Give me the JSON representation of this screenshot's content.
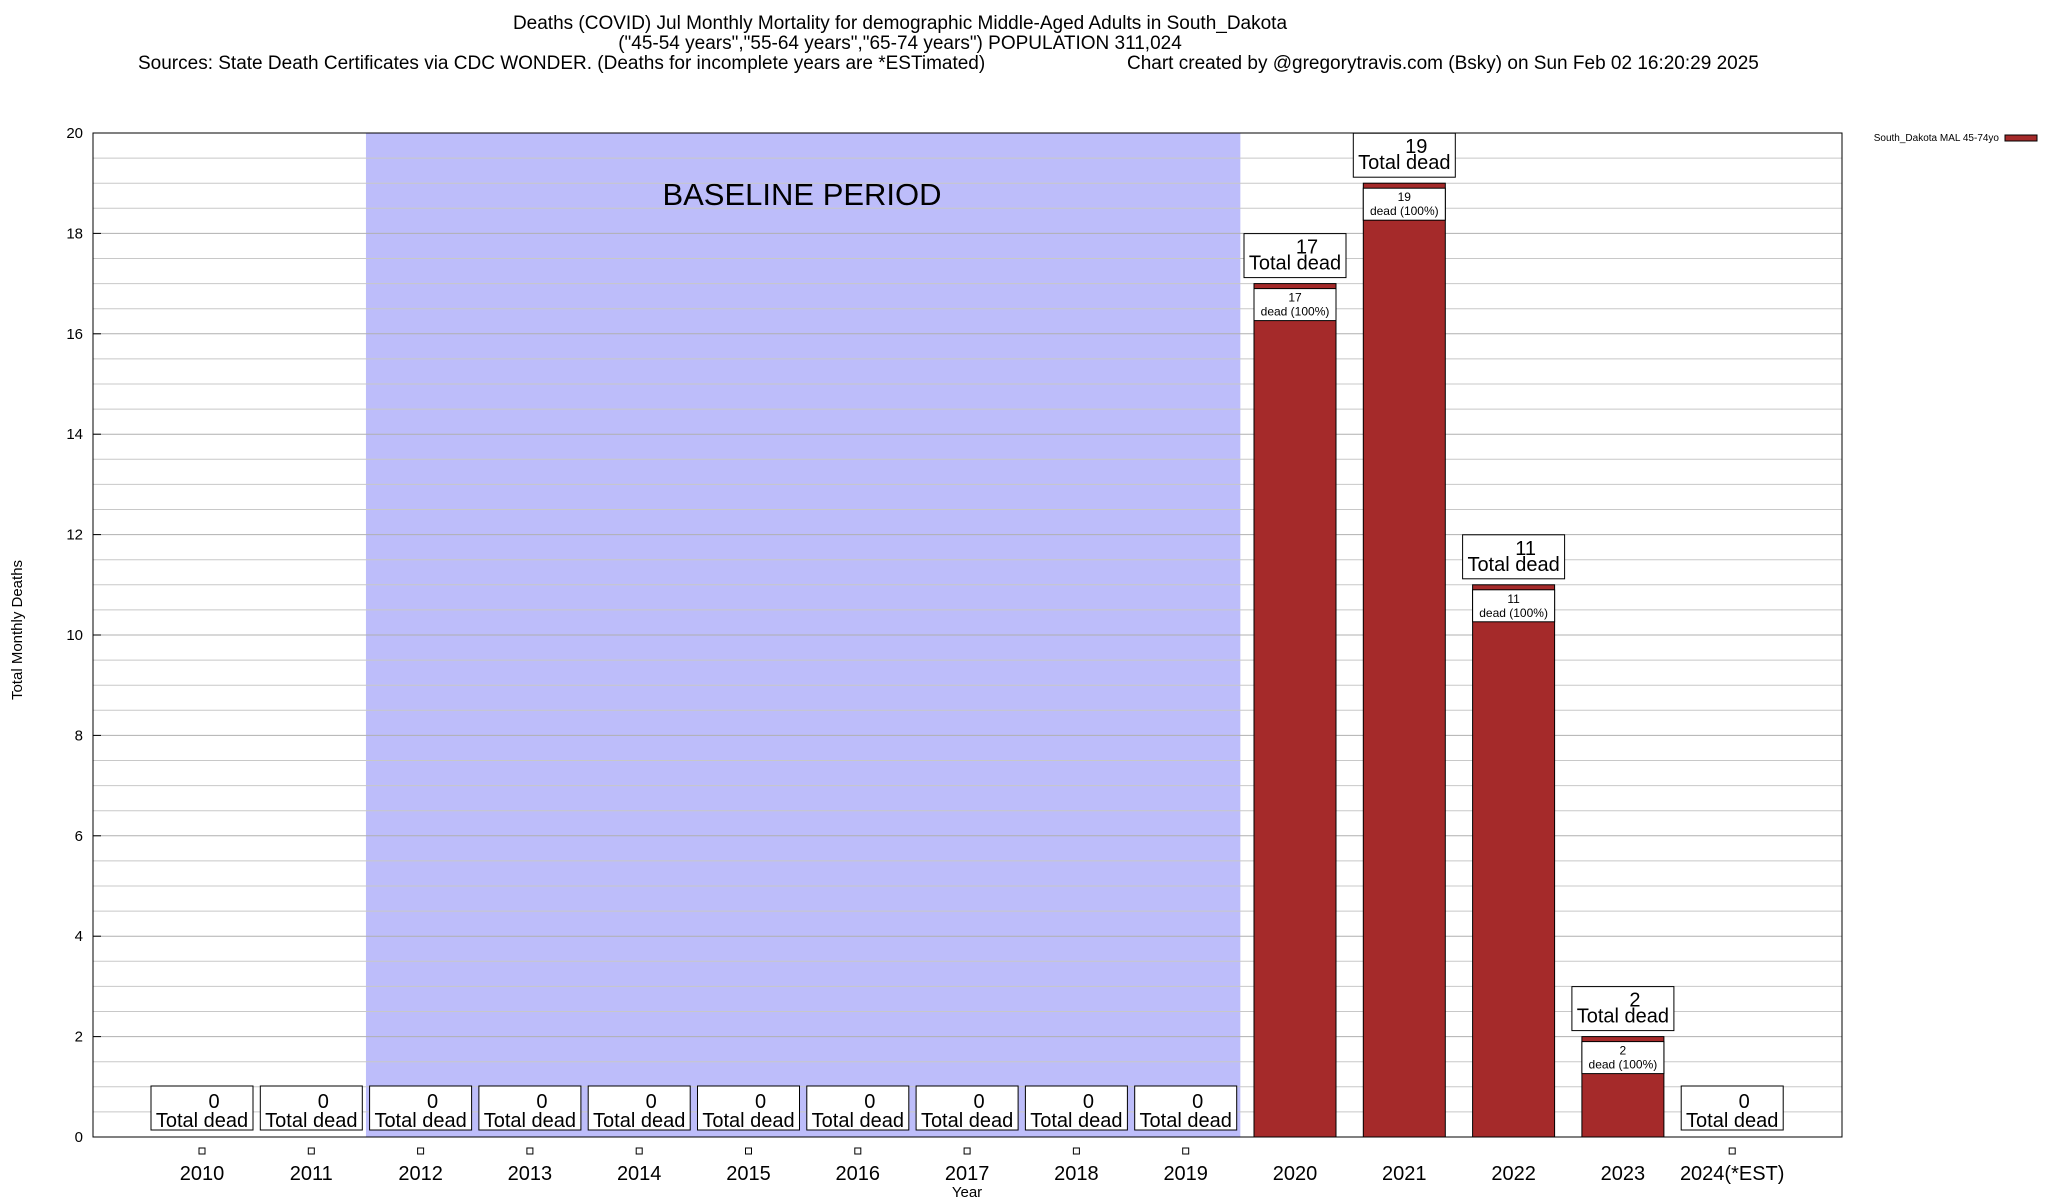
{
  "header": {
    "title": "Deaths (COVID) Jul Monthly Mortality for demographic Middle-Aged Adults in South_Dakota",
    "subtitle": "(\"45-54 years\",\"55-64 years\",\"65-74 years\") POPULATION 311,024",
    "sources": "Sources: State Death Certificates via CDC WONDER. (Deaths for incomplete years are *ESTimated)",
    "credit": "Chart created by @gregorytravis.com (Bsky) on Sun Feb 02 16:20:29 2025"
  },
  "chart_data": {
    "type": "bar",
    "categories": [
      "2010",
      "2011",
      "2012",
      "2013",
      "2014",
      "2015",
      "2016",
      "2017",
      "2018",
      "2019",
      "2020",
      "2021",
      "2022",
      "2023",
      "2024(*EST)"
    ],
    "series": [
      {
        "name": "South_Dakota MAL 45-74yo",
        "values": [
          0,
          0,
          0,
          0,
          0,
          0,
          0,
          0,
          0,
          0,
          17,
          19,
          11,
          2,
          0
        ],
        "color": "#a52a2a"
      }
    ],
    "xlabel": "Year",
    "ylabel": "Total Monthly Deaths",
    "ylim": [
      0,
      20
    ],
    "yticks": [
      0,
      2,
      4,
      6,
      8,
      10,
      12,
      14,
      16,
      18,
      20
    ],
    "grid": true,
    "legend": "top-right",
    "baseline_band": {
      "label": "BASELINE PERIOD",
      "from": "2012",
      "to": "2019",
      "color": "#bdbdfa"
    },
    "total_label_suffix": "Total dead",
    "segment_label_suffix": "dead (100%)"
  }
}
